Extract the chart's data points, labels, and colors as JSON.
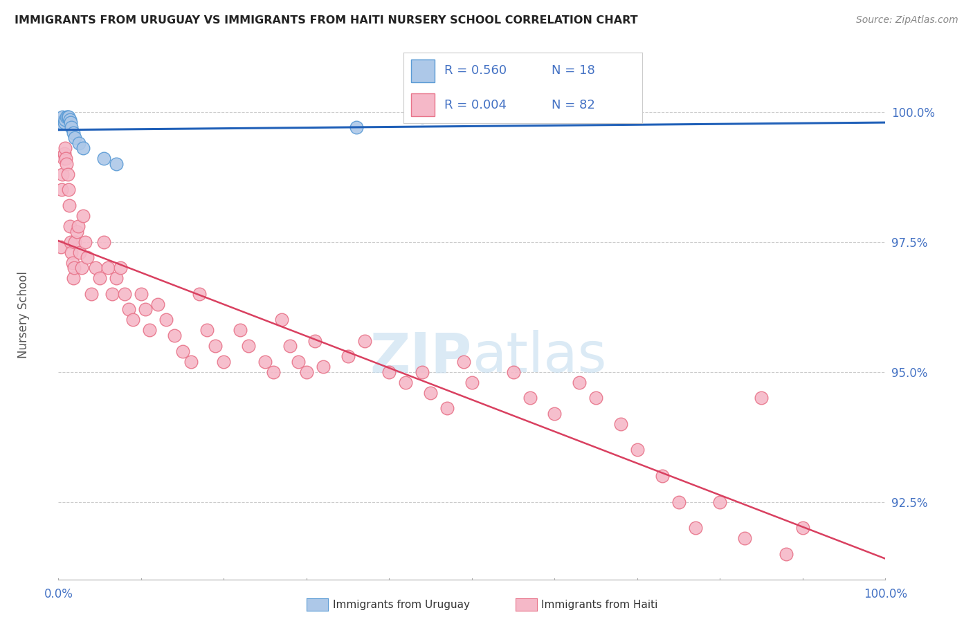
{
  "title": "IMMIGRANTS FROM URUGUAY VS IMMIGRANTS FROM HAITI NURSERY SCHOOL CORRELATION CHART",
  "source": "Source: ZipAtlas.com",
  "ylabel": "Nursery School",
  "yticks_right": [
    100.0,
    97.5,
    95.0,
    92.5
  ],
  "ytick_labels_right": [
    "100.0%",
    "97.5%",
    "95.0%",
    "92.5%"
  ],
  "legend_label_uruguay": "Immigrants from Uruguay",
  "legend_label_haiti": "Immigrants from Haiti",
  "legend_R_uruguay": "R = 0.560",
  "legend_N_uruguay": "N = 18",
  "legend_R_haiti": "R = 0.004",
  "legend_N_haiti": "N = 82",
  "xlim": [
    0.0,
    100.0
  ],
  "ylim": [
    91.0,
    101.2
  ],
  "uruguay_color": "#adc8e8",
  "haiti_color": "#f5b8c8",
  "uruguay_edge_color": "#5b9bd5",
  "haiti_edge_color": "#e8748a",
  "trend_uruguay_color": "#2060b8",
  "trend_haiti_color": "#d94060",
  "watermark_zip": "ZIP",
  "watermark_atlas": "atlas",
  "uruguay_x": [
    0.3,
    0.5,
    0.7,
    0.8,
    1.0,
    1.1,
    1.2,
    1.4,
    1.5,
    1.6,
    1.8,
    2.0,
    2.5,
    3.0,
    5.5,
    7.0,
    36.0,
    44.0
  ],
  "uruguay_y": [
    99.8,
    99.9,
    99.8,
    99.85,
    99.9,
    99.9,
    99.9,
    99.85,
    99.8,
    99.7,
    99.6,
    99.5,
    99.4,
    99.3,
    99.1,
    99.0,
    99.7,
    99.9
  ],
  "haiti_x": [
    0.3,
    0.4,
    0.5,
    0.6,
    0.7,
    0.8,
    0.9,
    1.0,
    1.1,
    1.2,
    1.3,
    1.4,
    1.5,
    1.6,
    1.7,
    1.8,
    1.9,
    2.0,
    2.2,
    2.4,
    2.6,
    2.8,
    3.0,
    3.2,
    3.5,
    4.0,
    4.5,
    5.0,
    5.5,
    6.0,
    6.5,
    7.0,
    7.5,
    8.0,
    8.5,
    9.0,
    10.0,
    10.5,
    11.0,
    12.0,
    13.0,
    14.0,
    15.0,
    16.0,
    17.0,
    18.0,
    19.0,
    20.0,
    22.0,
    23.0,
    25.0,
    26.0,
    27.0,
    28.0,
    29.0,
    30.0,
    31.0,
    32.0,
    35.0,
    37.0,
    40.0,
    42.0,
    44.0,
    45.0,
    47.0,
    49.0,
    50.0,
    55.0,
    57.0,
    60.0,
    63.0,
    65.0,
    68.0,
    70.0,
    73.0,
    75.0,
    77.0,
    80.0,
    83.0,
    85.0,
    88.0,
    90.0
  ],
  "haiti_y": [
    97.4,
    98.5,
    98.8,
    99.1,
    99.2,
    99.3,
    99.1,
    99.0,
    98.8,
    98.5,
    98.2,
    97.8,
    97.5,
    97.3,
    97.1,
    96.8,
    97.0,
    97.5,
    97.7,
    97.8,
    97.3,
    97.0,
    98.0,
    97.5,
    97.2,
    96.5,
    97.0,
    96.8,
    97.5,
    97.0,
    96.5,
    96.8,
    97.0,
    96.5,
    96.2,
    96.0,
    96.5,
    96.2,
    95.8,
    96.3,
    96.0,
    95.7,
    95.4,
    95.2,
    96.5,
    95.8,
    95.5,
    95.2,
    95.8,
    95.5,
    95.2,
    95.0,
    96.0,
    95.5,
    95.2,
    95.0,
    95.6,
    95.1,
    95.3,
    95.6,
    95.0,
    94.8,
    95.0,
    94.6,
    94.3,
    95.2,
    94.8,
    95.0,
    94.5,
    94.2,
    94.8,
    94.5,
    94.0,
    93.5,
    93.0,
    92.5,
    92.0,
    92.5,
    91.8,
    94.5,
    91.5,
    92.0
  ]
}
